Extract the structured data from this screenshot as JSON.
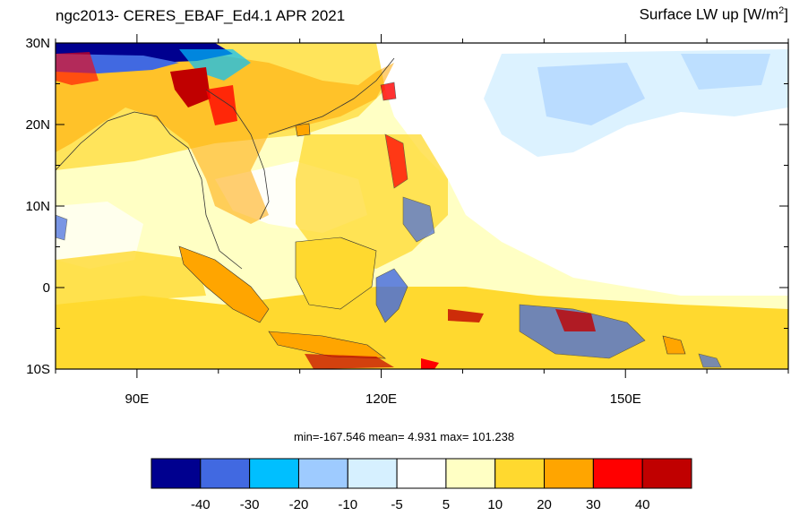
{
  "header": {
    "left_title": "ngc2013- CERES_EBAF_Ed4.1 APR 2021",
    "right_title_main": "Surface LW up [W/m",
    "right_title_sup": "2",
    "right_title_end": "]"
  },
  "map": {
    "region": "Maritime Continent / Southeast Asia",
    "lon_range": [
      80,
      170
    ],
    "lat_range": [
      -10,
      30
    ],
    "lat_ticks": [
      {
        "value": 30,
        "label": "30N"
      },
      {
        "value": 20,
        "label": "20N"
      },
      {
        "value": 10,
        "label": "10N"
      },
      {
        "value": 0,
        "label": "0"
      },
      {
        "value": -10,
        "label": "10S"
      }
    ],
    "lon_ticks": [
      {
        "value": 90,
        "label": "90E"
      },
      {
        "value": 120,
        "label": "120E"
      },
      {
        "value": 150,
        "label": "150E"
      }
    ]
  },
  "stats": {
    "text": "min=-167.546  mean=   4.931  max= 101.238"
  },
  "colorbar": {
    "colors": [
      "#00008f",
      "#4169e1",
      "#00bfff",
      "#9ecbff",
      "#d6f0ff",
      "#ffffff",
      "#ffffc4",
      "#ffd92f",
      "#ffa500",
      "#ff0000",
      "#c00000"
    ],
    "labels": [
      "-40",
      "-30",
      "-20",
      "-10",
      "-5",
      "5",
      "10",
      "20",
      "30",
      "40"
    ]
  }
}
